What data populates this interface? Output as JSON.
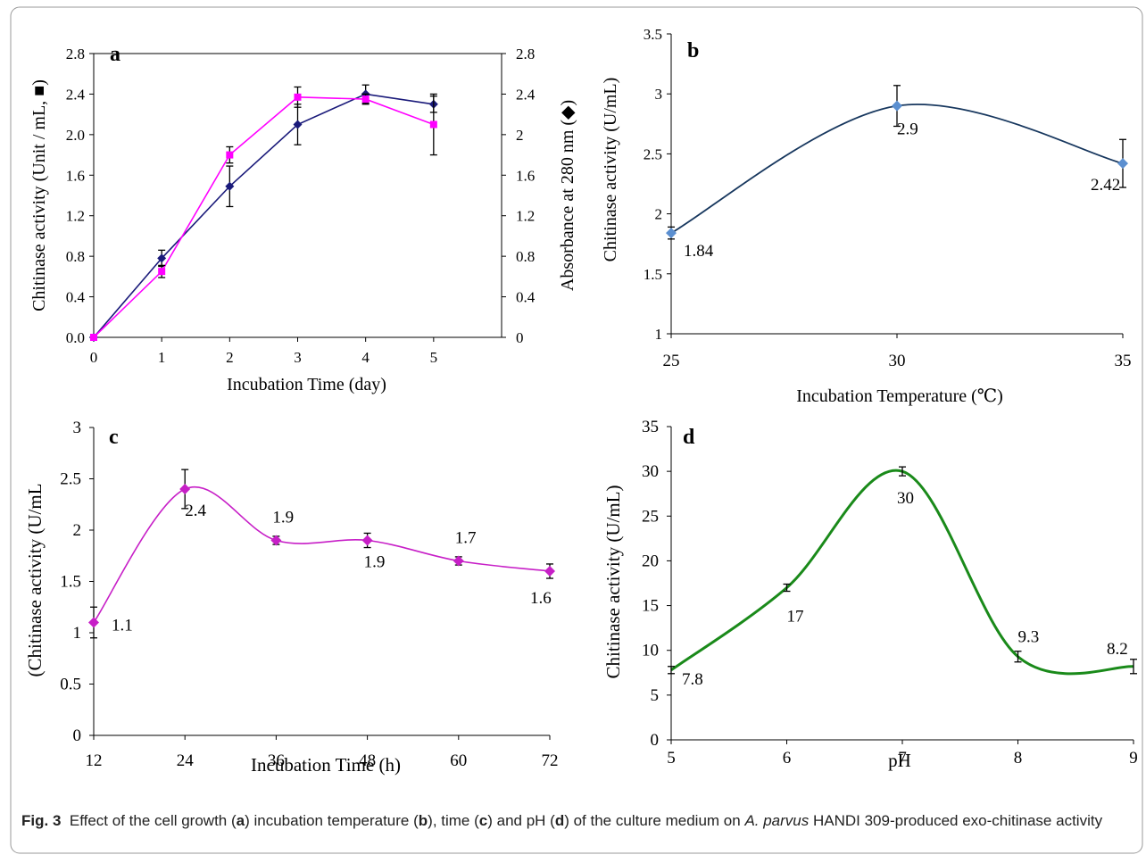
{
  "caption": {
    "fig_label": "Fig. 3",
    "t1": "Effect of the cell growth (",
    "l1": "a",
    "t2": ") incubation temperature (",
    "l2": "b",
    "t3": "), time (",
    "l3": "c",
    "t4": ") and pH (",
    "l4": "d",
    "t5": ") of the culture medium on ",
    "species": "A. parvus",
    "t6": " HANDI 309-produced exo-chitinase activity"
  },
  "colors": {
    "series_a1": "#1a1a7a",
    "series_a2": "#ff00ff",
    "series_b": "#17375e",
    "marker_b": "#5b8fd0",
    "series_c": "#c71fc7",
    "series_d": "#1a8a1a"
  },
  "chart_data": [
    {
      "type": "line",
      "panel": "a",
      "panel_label": "a",
      "xlabel": "Incubation Time (day)",
      "ylabel": "Chitinase activity (Unit / mL, ■)",
      "y2label": "Absorbance at 280 nm (◆)",
      "xlim": [
        0,
        6
      ],
      "ylim": [
        0,
        2.8
      ],
      "x_ticks": [
        0,
        1,
        2,
        3,
        4,
        5
      ],
      "y_ticks": [
        "0.0",
        "0.4",
        "0.8",
        "1.2",
        "1.6",
        "2.0",
        "2.4",
        "2.8"
      ],
      "y2_ticks": [
        "0",
        "0.4",
        "0.8",
        "1.2",
        "1.6",
        "2",
        "2.4",
        "2.8"
      ],
      "series": [
        {
          "marker": "diamond",
          "axis": "y2",
          "x": [
            0,
            1,
            2,
            3,
            4,
            5
          ],
          "values": [
            0,
            0.78,
            1.49,
            2.1,
            2.4,
            2.3
          ],
          "err": [
            0,
            0.08,
            0.2,
            0.2,
            0.09,
            0.08
          ]
        },
        {
          "marker": "square",
          "axis": "y",
          "x": [
            0,
            1,
            2,
            3,
            4,
            5
          ],
          "values": [
            0,
            0.65,
            1.8,
            2.37,
            2.35,
            2.1
          ],
          "err": [
            0,
            0.06,
            0.08,
            0.1,
            0.05,
            0.3
          ]
        }
      ]
    },
    {
      "type": "line",
      "panel": "b",
      "panel_label": "b",
      "xlabel": "Incubation Temperature (℃)",
      "ylabel": "Chitinase activity (U/mL)",
      "xlim": [
        25,
        35
      ],
      "ylim": [
        1,
        3.5
      ],
      "x_ticks": [
        25,
        30,
        35
      ],
      "y_ticks": [
        "1",
        "1.5",
        "2",
        "2.5",
        "3",
        "3.5"
      ],
      "series": [
        {
          "marker": "diamond",
          "x": [
            25,
            30,
            35
          ],
          "values": [
            1.84,
            2.9,
            2.42
          ],
          "err": [
            0.05,
            0.17,
            0.2
          ]
        }
      ],
      "data_labels": [
        "1.84",
        "2.9",
        "2.42"
      ]
    },
    {
      "type": "line",
      "panel": "c",
      "panel_label": "c",
      "xlabel": "Incubation Time (h)",
      "ylabel": "(Chitinase activity (U/mL",
      "xlim": [
        12,
        72
      ],
      "ylim": [
        0,
        3
      ],
      "x_ticks": [
        12,
        24,
        36,
        48,
        60,
        72
      ],
      "y_ticks": [
        "0",
        "0.5",
        "1",
        "1.5",
        "2",
        "2.5",
        "3"
      ],
      "series": [
        {
          "marker": "diamond",
          "x": [
            12,
            24,
            36,
            48,
            60,
            72
          ],
          "values": [
            1.1,
            2.4,
            1.9,
            1.9,
            1.7,
            1.6
          ],
          "err": [
            0.15,
            0.19,
            0.04,
            0.07,
            0.04,
            0.07
          ]
        }
      ],
      "data_labels": [
        "1.1",
        "2.4",
        "1.9",
        "1.9",
        "1.7",
        "1.6"
      ]
    },
    {
      "type": "line",
      "panel": "d",
      "panel_label": "d",
      "xlabel": "pH",
      "ylabel": "Chitinase activity (U/mL)",
      "xlim": [
        5,
        9
      ],
      "ylim": [
        0,
        35
      ],
      "x_ticks": [
        5,
        6,
        7,
        8,
        9
      ],
      "y_ticks": [
        "0",
        "5",
        "10",
        "15",
        "20",
        "25",
        "30",
        "35"
      ],
      "series": [
        {
          "marker": "none",
          "x": [
            5,
            6,
            7,
            8,
            9
          ],
          "values": [
            7.8,
            17,
            30,
            9.3,
            8.2
          ],
          "err": [
            0.4,
            0.4,
            0.5,
            0.6,
            0.8
          ]
        }
      ],
      "data_labels": [
        "7.8",
        "17",
        "30",
        "9.3",
        "8.2"
      ]
    }
  ]
}
